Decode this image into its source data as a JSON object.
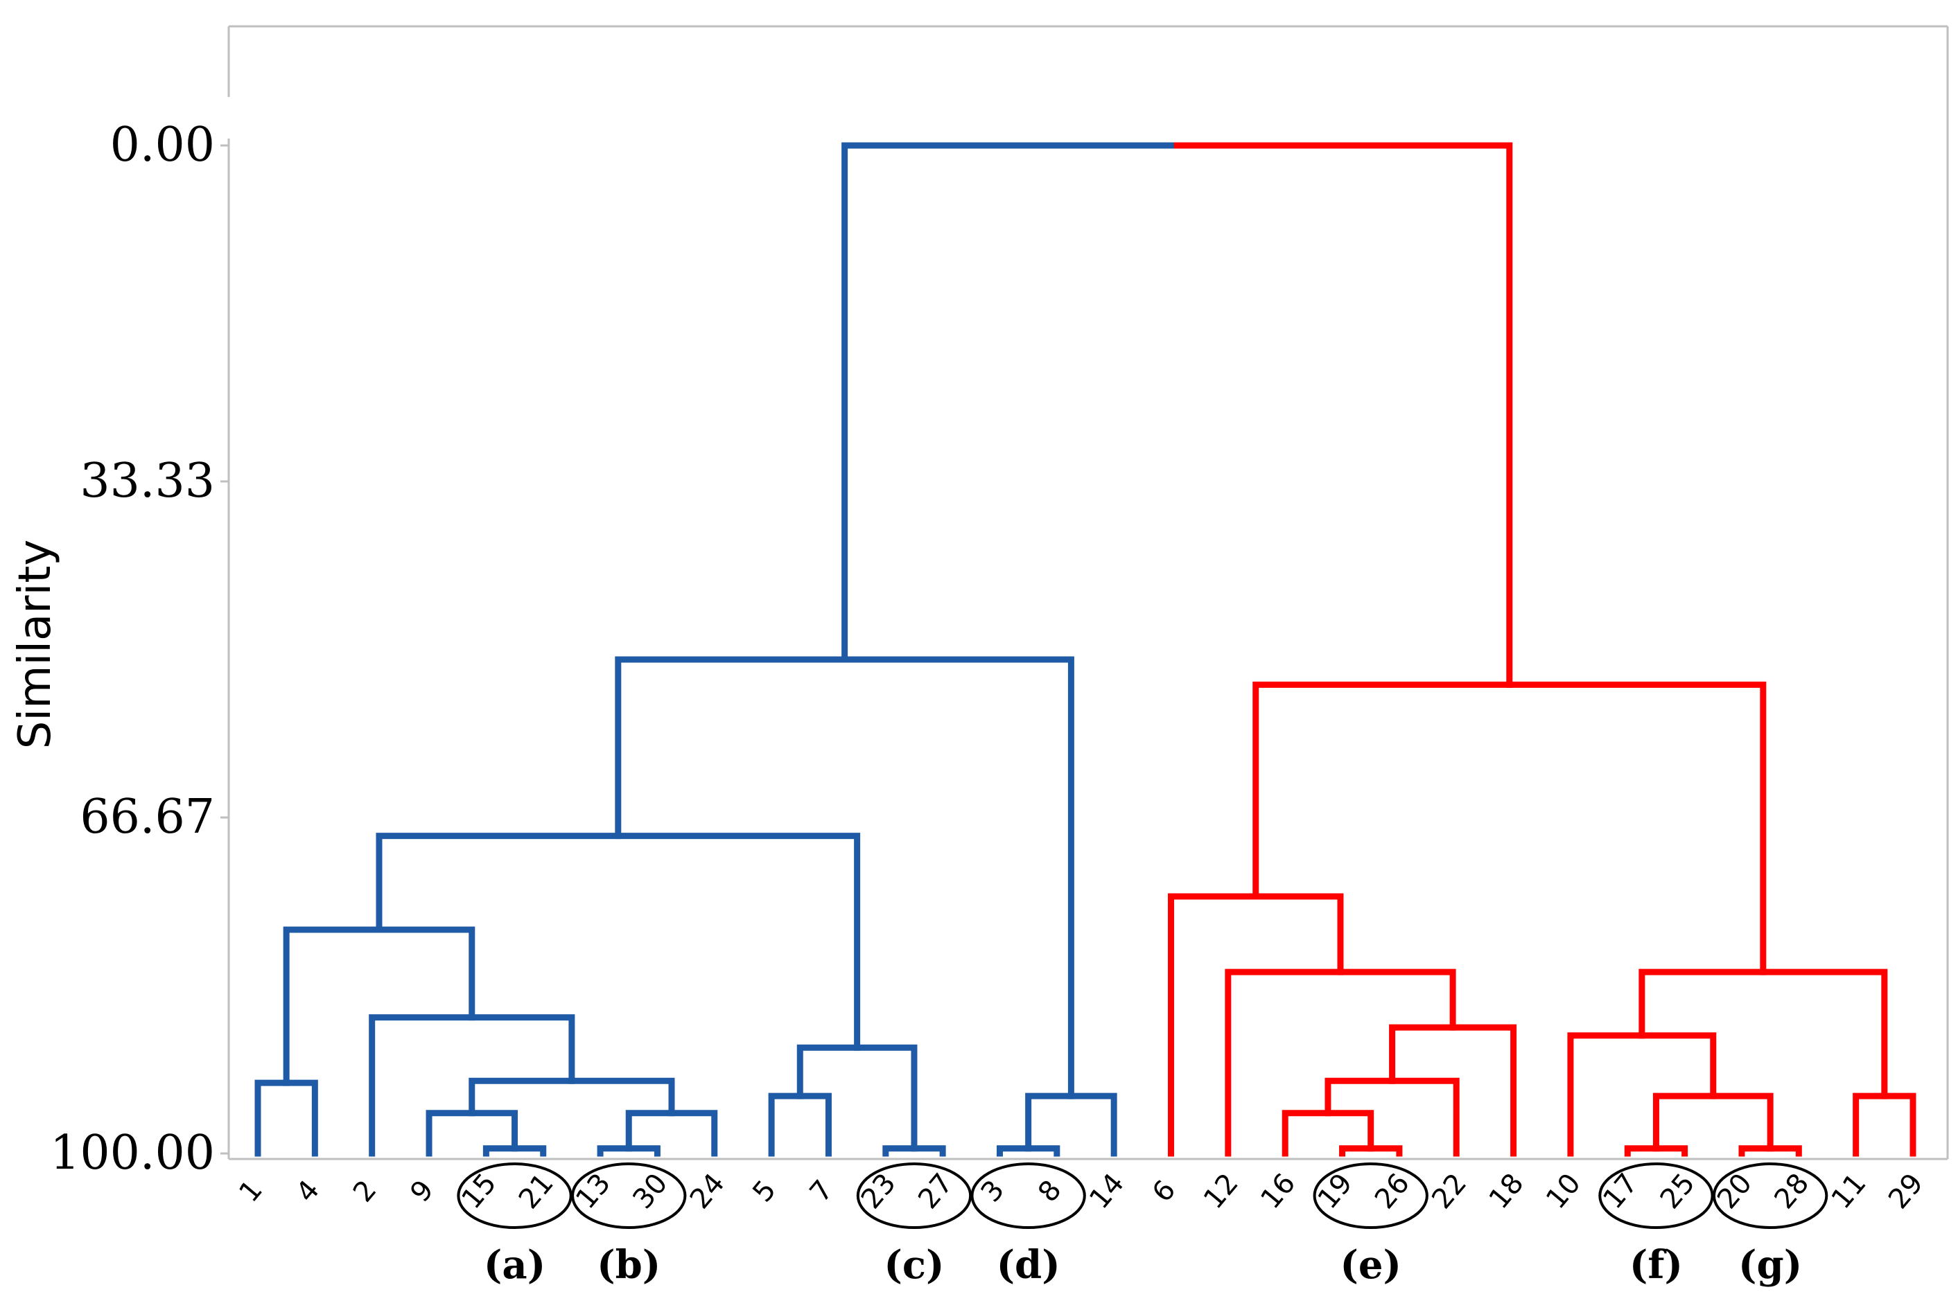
{
  "chart_data": {
    "type": "dendrogram",
    "title": "",
    "xlabel": "",
    "ylabel": "Similarity",
    "ylim": [
      0,
      100
    ],
    "y_inverted": true,
    "yticks": [
      "0.00",
      "33.33",
      "66.67",
      "100.00"
    ],
    "grid": false,
    "leaves": [
      1,
      4,
      2,
      9,
      15,
      21,
      13,
      30,
      24,
      5,
      7,
      23,
      27,
      3,
      8,
      14,
      6,
      12,
      16,
      19,
      26,
      22,
      18,
      10,
      17,
      25,
      20,
      28,
      11,
      29
    ],
    "colors": {
      "left_cluster": "#1f5aa6",
      "right_cluster": "#ff0000",
      "circle": "#000000"
    },
    "merges": [
      {
        "children": [
          15,
          21
        ],
        "similarity": 99.5,
        "color": "blue"
      },
      {
        "children": [
          13,
          30
        ],
        "similarity": 99.5,
        "color": "blue"
      },
      {
        "children": [
          23,
          27
        ],
        "similarity": 99.5,
        "color": "blue"
      },
      {
        "children": [
          3,
          8
        ],
        "similarity": 99.5,
        "color": "blue"
      },
      {
        "children": [
          19,
          26
        ],
        "similarity": 99.5,
        "color": "red"
      },
      {
        "children": [
          17,
          25
        ],
        "similarity": 99.5,
        "color": "red"
      },
      {
        "children": [
          20,
          28
        ],
        "similarity": 99.5,
        "color": "red"
      },
      {
        "children": [
          1,
          4
        ],
        "similarity": 93.0,
        "color": "blue"
      },
      {
        "children": [
          9,
          "(15,21)"
        ],
        "similarity": 96.0,
        "color": "blue"
      },
      {
        "children": [
          "(13,30)",
          24
        ],
        "similarity": 96.0,
        "color": "blue"
      },
      {
        "children": [
          "(9,15,21)",
          "(13,30,24)"
        ],
        "similarity": 92.8,
        "color": "blue"
      },
      {
        "children": [
          2,
          "(9,15,21,13,30,24)"
        ],
        "similarity": 86.5,
        "color": "blue"
      },
      {
        "children": [
          "(1,4)",
          "(2,...)"
        ],
        "similarity": 77.8,
        "color": "blue"
      },
      {
        "children": [
          5,
          7
        ],
        "similarity": 94.3,
        "color": "blue"
      },
      {
        "children": [
          "(5,7)",
          "(23,27)"
        ],
        "similarity": 89.5,
        "color": "blue"
      },
      {
        "children": [
          "(1,...)",
          "(5,...)"
        ],
        "similarity": 68.5,
        "color": "blue"
      },
      {
        "children": [
          "(3,8)",
          14
        ],
        "similarity": 94.3,
        "color": "blue"
      },
      {
        "children": [
          "(1,...,27)",
          "(3,8,14)"
        ],
        "similarity": 51.0,
        "color": "blue"
      },
      {
        "children": [
          16,
          "(19,26)"
        ],
        "similarity": 96.0,
        "color": "red"
      },
      {
        "children": [
          "(16,19,26)",
          22
        ],
        "similarity": 92.8,
        "color": "red"
      },
      {
        "children": [
          "(16,...,22)",
          18
        ],
        "similarity": 87.5,
        "color": "red"
      },
      {
        "children": [
          12,
          "(16,...,18)"
        ],
        "similarity": 82.0,
        "color": "red"
      },
      {
        "children": [
          6,
          "(12,...)"
        ],
        "similarity": 74.5,
        "color": "red"
      },
      {
        "children": [
          "(17,25)",
          "(20,28)"
        ],
        "similarity": 94.3,
        "color": "red"
      },
      {
        "children": [
          10,
          "(17,25,20,28)"
        ],
        "similarity": 88.3,
        "color": "red"
      },
      {
        "children": [
          11,
          29
        ],
        "similarity": 94.3,
        "color": "red"
      },
      {
        "children": [
          "(10,...)",
          "(11,29)"
        ],
        "similarity": 82.0,
        "color": "red"
      },
      {
        "children": [
          "(6,...)",
          "(10,...,29)"
        ],
        "similarity": 53.5,
        "color": "red"
      },
      {
        "children": [
          "blue cluster",
          "red cluster"
        ],
        "similarity": 0.0,
        "color": "blue/red"
      }
    ],
    "circled_groups": [
      {
        "label": "(a)",
        "members": [
          15,
          21
        ]
      },
      {
        "label": "(b)",
        "members": [
          13,
          30
        ]
      },
      {
        "label": "(c)",
        "members": [
          23,
          27
        ]
      },
      {
        "label": "(d)",
        "members": [
          3,
          8
        ]
      },
      {
        "label": "(e)",
        "members": [
          19,
          26
        ]
      },
      {
        "label": "(f)",
        "members": [
          17,
          25
        ]
      },
      {
        "label": "(g)",
        "members": [
          20,
          28
        ]
      }
    ]
  }
}
